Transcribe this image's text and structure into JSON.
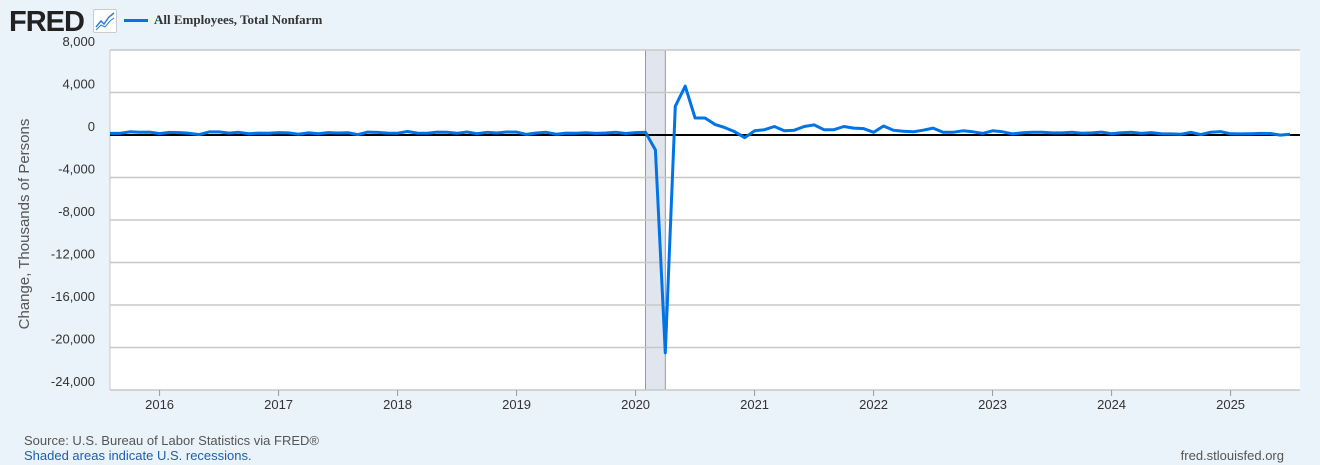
{
  "header": {
    "logo": "FRED",
    "logo_icon": "line-chart-icon",
    "legend_label": "All Employees, Total Nonfarm",
    "series_color": "#0073e6"
  },
  "footer": {
    "source": "Source: U.S. Bureau of Labor Statistics via FRED®",
    "recession_note": "Shaded areas indicate U.S. recessions.",
    "url": "fred.stlouisfed.org"
  },
  "chart_data": {
    "type": "line",
    "title": "",
    "ylabel": "Change, Thousands of Persons",
    "xlabel": "",
    "ylim": [
      -24000,
      8000
    ],
    "yticks": [
      8000,
      4000,
      0,
      -4000,
      -8000,
      -12000,
      -16000,
      -20000,
      -24000
    ],
    "ytick_labels": [
      "8,000",
      "4,000",
      "0",
      "-4,000",
      "-8,000",
      "-12,000",
      "-16,000",
      "-20,000",
      "-24,000"
    ],
    "xlim": [
      "2015-08",
      "2025-08"
    ],
    "xtick_labels": [
      "2016",
      "2017",
      "2018",
      "2019",
      "2020",
      "2021",
      "2022",
      "2023",
      "2024",
      "2025"
    ],
    "grid": true,
    "recessions": [
      [
        "2020-02",
        "2020-04"
      ]
    ],
    "start": "2015-08",
    "series": [
      {
        "name": "All Employees, Total Nonfarm",
        "color": "#0073e6",
        "values": [
          150,
          150,
          300,
          250,
          270,
          130,
          240,
          230,
          160,
          40,
          290,
          290,
          180,
          250,
          120,
          180,
          170,
          230,
          200,
          80,
          210,
          120,
          230,
          190,
          220,
          40,
          270,
          240,
          180,
          170,
          330,
          180,
          170,
          270,
          250,
          160,
          280,
          120,
          250,
          190,
          280,
          270,
          60,
          190,
          250,
          80,
          180,
          170,
          210,
          150,
          190,
          250,
          140,
          230,
          250,
          -1400,
          -20500,
          2700,
          4600,
          1600,
          1600,
          1000,
          700,
          300,
          -250,
          400,
          500,
          800,
          400,
          450,
          800,
          950,
          500,
          500,
          800,
          650,
          600,
          250,
          850,
          450,
          350,
          300,
          450,
          650,
          250,
          250,
          400,
          300,
          150,
          400,
          300,
          100,
          220,
          250,
          250,
          200,
          200,
          250,
          170,
          200,
          270,
          120,
          220,
          250,
          150,
          230,
          120,
          100,
          80,
          250,
          40,
          260,
          320,
          110,
          100,
          120,
          150,
          140,
          -10,
          70
        ]
      }
    ]
  }
}
